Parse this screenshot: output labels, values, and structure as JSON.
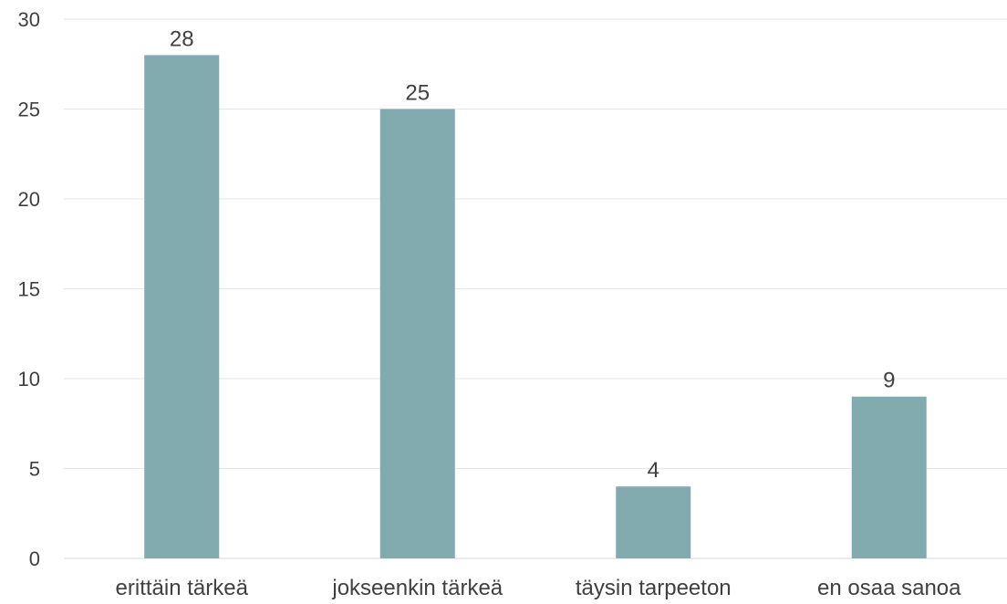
{
  "chart_data": {
    "type": "bar",
    "categories": [
      "erittäin tärkeä",
      "jokseenkin tärkeä",
      "täysin tarpeeton",
      "en osaa sanoa"
    ],
    "values": [
      28,
      25,
      4,
      9
    ],
    "data_labels": [
      "28",
      "25",
      "4",
      "9"
    ],
    "ylim": [
      0,
      30
    ],
    "yticks": [
      0,
      5,
      10,
      15,
      20,
      25,
      30
    ],
    "grid": true,
    "legend": "none",
    "colors": {
      "bar": "#82ABB0",
      "grid": "#e6e6e6",
      "axis": "#d9d9d9",
      "text": "#404040"
    }
  }
}
